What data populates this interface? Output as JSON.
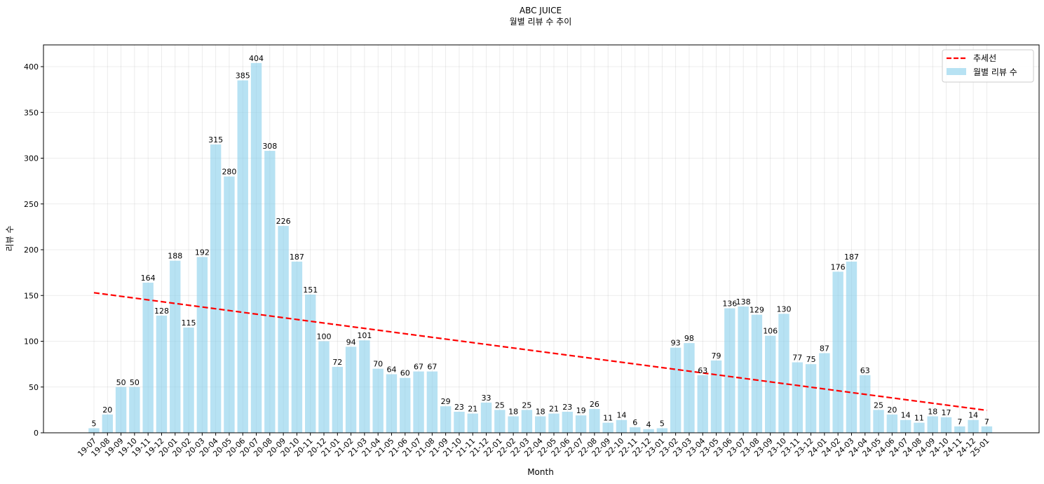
{
  "chart_data": {
    "type": "bar",
    "title": "ABC JUICE",
    "subtitle": "월별 리뷰 수 추이",
    "xlabel": "Month",
    "ylabel": "리뷰 수",
    "ylim": [
      0,
      420
    ],
    "yticks": [
      0,
      50,
      100,
      150,
      200,
      250,
      300,
      350,
      400
    ],
    "grid": true,
    "legend_position": "top-right",
    "categories": [
      "19-07",
      "19-08",
      "19-09",
      "19-10",
      "19-11",
      "19-12",
      "20-01",
      "20-02",
      "20-03",
      "20-04",
      "20-05",
      "20-06",
      "20-07",
      "20-08",
      "20-09",
      "20-10",
      "20-11",
      "20-12",
      "21-01",
      "21-02",
      "21-03",
      "21-04",
      "21-05",
      "21-06",
      "21-07",
      "21-08",
      "21-09",
      "21-10",
      "21-11",
      "21-12",
      "22-01",
      "22-02",
      "22-03",
      "22-04",
      "22-05",
      "22-06",
      "22-07",
      "22-08",
      "22-09",
      "22-10",
      "22-11",
      "22-12",
      "23-01",
      "23-02",
      "23-03",
      "23-04",
      "23-05",
      "23-06",
      "23-07",
      "23-08",
      "23-09",
      "23-10",
      "23-11",
      "23-12",
      "24-01",
      "24-02",
      "24-03",
      "24-04",
      "24-05",
      "24-06",
      "24-07",
      "24-08",
      "24-09",
      "24-10",
      "24-11",
      "24-12",
      "25-01"
    ],
    "series": [
      {
        "name": "월별 리뷰 수",
        "type": "bar",
        "color": "#87ceeb",
        "values": [
          5,
          20,
          50,
          50,
          164,
          128,
          188,
          115,
          192,
          315,
          280,
          385,
          404,
          308,
          226,
          187,
          151,
          100,
          72,
          94,
          101,
          70,
          64,
          60,
          67,
          67,
          29,
          23,
          21,
          33,
          25,
          18,
          25,
          18,
          21,
          23,
          19,
          26,
          11,
          14,
          6,
          4,
          5,
          93,
          98,
          63,
          79,
          136,
          138,
          129,
          106,
          130,
          77,
          75,
          87,
          176,
          187,
          63,
          25,
          20,
          14,
          11,
          18,
          17,
          7,
          14,
          7
        ]
      },
      {
        "name": "추세선",
        "type": "line",
        "color": "#ff0000",
        "style": "dashed",
        "start": 153,
        "end": 24.5
      }
    ]
  }
}
